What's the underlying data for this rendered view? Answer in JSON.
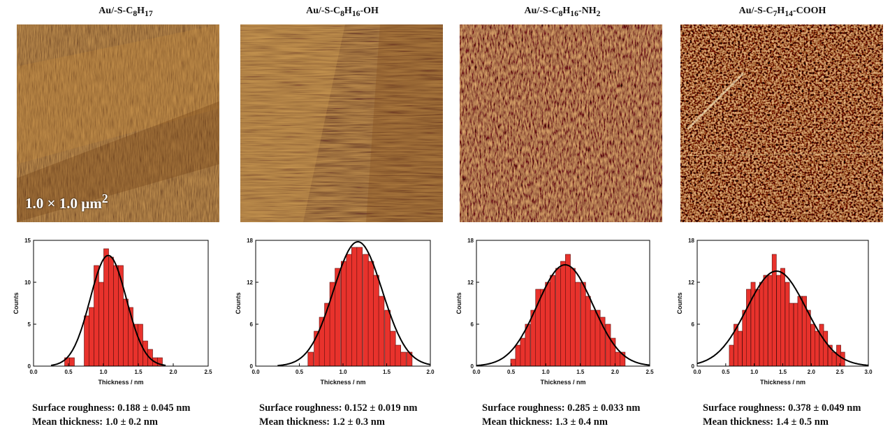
{
  "colors": {
    "bar": "#e8322c",
    "bar_stroke": "#5a0e0c",
    "curve": "#000000",
    "afm_base": "#8a4a14"
  },
  "panels": [
    {
      "title_main": "Au/-S-C",
      "sub1": "8",
      "mid1": "H",
      "sub2": "17",
      "tail": "",
      "scale_label": "1.0 × 1.0 µm",
      "scale_sup": "2",
      "roughness": "Surface roughness: 0.188 ± 0.045 nm",
      "mean": "Mean thickness: 1.0 ± 0.2 nm"
    },
    {
      "title_main": "Au/-S-C",
      "sub1": "8",
      "mid1": "H",
      "sub2": "16",
      "tail": "-OH",
      "roughness": "Surface roughness: 0.152 ± 0.019 nm",
      "mean": "Mean thickness: 1.2 ± 0.3 nm"
    },
    {
      "title_main": "Au/-S-C",
      "sub1": "8",
      "mid1": "H",
      "sub2": "16",
      "tail": "-NH",
      "tail_sub": "2",
      "roughness": "Surface roughness: 0.285 ± 0.033 nm",
      "mean": "Mean thickness: 1.3 ± 0.4 nm"
    },
    {
      "title_main": "Au/-S-C",
      "sub1": "7",
      "mid1": "H",
      "sub2": "14",
      "tail": "-COOH",
      "roughness": "Surface roughness: 0.378 ± 0.049 nm",
      "mean": "Mean thickness: 1.4 ± 0.5 nm"
    }
  ],
  "chart_data": [
    {
      "type": "bar",
      "xlabel": "Thickness / nm",
      "ylabel": "Counts",
      "xlim": [
        0,
        2.5
      ],
      "ylim": [
        0,
        15
      ],
      "xticks": [
        "0.0",
        "0.5",
        "1.0",
        "1.5",
        "2.0",
        "2.5"
      ],
      "yticks": [
        "0",
        "5",
        "10",
        "15"
      ],
      "bin_width": 0.07,
      "x": [
        0.48,
        0.55,
        0.76,
        0.83,
        0.9,
        0.97,
        1.04,
        1.11,
        1.18,
        1.25,
        1.32,
        1.39,
        1.46,
        1.53,
        1.6,
        1.67,
        1.74,
        1.81
      ],
      "values": [
        1,
        1,
        6,
        7,
        12,
        10,
        14,
        13,
        12,
        12,
        8,
        7,
        5,
        5,
        3,
        2,
        1,
        1
      ],
      "fit": {
        "mean": 1.07,
        "sd": 0.26,
        "amplitude": 13.2
      }
    },
    {
      "type": "bar",
      "xlabel": "Thickness / nm",
      "ylabel": "Counts",
      "xlim": [
        0,
        2.0
      ],
      "ylim": [
        0,
        18
      ],
      "xticks": [
        "0.0",
        "0.5",
        "1.0",
        "1.5",
        "2.0"
      ],
      "yticks": [
        "0",
        "6",
        "12",
        "18"
      ],
      "bin_width": 0.063,
      "x": [
        0.63,
        0.7,
        0.76,
        0.82,
        0.88,
        0.94,
        1.01,
        1.07,
        1.13,
        1.19,
        1.26,
        1.32,
        1.38,
        1.44,
        1.51,
        1.57,
        1.63,
        1.69,
        1.76
      ],
      "values": [
        2,
        5,
        7,
        9,
        12,
        14,
        15,
        16,
        17,
        17,
        16,
        15,
        13,
        10,
        8,
        5,
        3,
        2,
        2
      ],
      "fit": {
        "mean": 1.17,
        "sd": 0.28,
        "amplitude": 17.8
      }
    },
    {
      "type": "bar",
      "xlabel": "Thickness / nm",
      "ylabel": "Counts",
      "xlim": [
        0,
        2.5
      ],
      "ylim": [
        0,
        18
      ],
      "xticks": [
        "0.0",
        "0.5",
        "1.0",
        "1.5",
        "2.0",
        "2.5"
      ],
      "yticks": [
        "0",
        "6",
        "12",
        "18"
      ],
      "bin_width": 0.072,
      "x": [
        0.53,
        0.6,
        0.67,
        0.74,
        0.82,
        0.89,
        0.96,
        1.03,
        1.1,
        1.18,
        1.25,
        1.32,
        1.39,
        1.46,
        1.54,
        1.61,
        1.68,
        1.75,
        1.82,
        1.9,
        1.97,
        2.04,
        2.11
      ],
      "values": [
        1,
        3,
        4,
        6,
        8,
        11,
        11,
        12,
        13,
        14,
        15,
        16,
        14,
        12,
        12,
        10,
        8,
        8,
        7,
        6,
        4,
        2,
        2
      ],
      "fit": {
        "mean": 1.28,
        "sd": 0.4,
        "amplitude": 14.5
      }
    },
    {
      "type": "bar",
      "xlabel": "Thickness / nm",
      "ylabel": "Counts",
      "xlim": [
        0,
        3.0
      ],
      "ylim": [
        0,
        18
      ],
      "xticks": [
        "0.0",
        "0.5",
        "1.0",
        "1.5",
        "2.0",
        "2.5",
        "3.0"
      ],
      "yticks": [
        "0",
        "6",
        "12",
        "18"
      ],
      "bin_width": 0.075,
      "x": [
        0.6,
        0.68,
        0.75,
        0.83,
        0.9,
        0.98,
        1.05,
        1.13,
        1.2,
        1.28,
        1.35,
        1.43,
        1.5,
        1.58,
        1.65,
        1.73,
        1.8,
        1.88,
        1.95,
        2.03,
        2.1,
        2.18,
        2.25,
        2.33,
        2.4,
        2.48,
        2.55
      ],
      "values": [
        3,
        6,
        5,
        8,
        11,
        12,
        11,
        12,
        13,
        13,
        16,
        13,
        14,
        12,
        9,
        9,
        10,
        10,
        8,
        6,
        5,
        6,
        5,
        3,
        2,
        3,
        2
      ],
      "fit": {
        "mean": 1.39,
        "sd": 0.52,
        "amplitude": 13.6
      }
    }
  ]
}
